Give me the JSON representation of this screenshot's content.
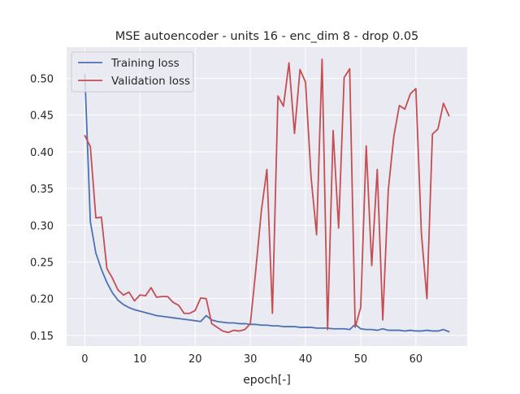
{
  "chart_data": {
    "type": "line",
    "title": "MSE autoencoder - units 16 - enc_dim 8 - drop 0.05",
    "xlabel": "epoch[-]",
    "ylabel": "",
    "xlim": [
      -3.3,
      69.3
    ],
    "ylim": [
      0.1355,
      0.5425
    ],
    "x_ticks": [
      0,
      10,
      20,
      30,
      40,
      50,
      60
    ],
    "x_tick_labels": [
      "0",
      "10",
      "20",
      "30",
      "40",
      "50",
      "60"
    ],
    "y_ticks": [
      0.15,
      0.2,
      0.25,
      0.3,
      0.35,
      0.4,
      0.45,
      0.5
    ],
    "y_tick_labels": [
      "0.15",
      "0.20",
      "0.25",
      "0.30",
      "0.35",
      "0.40",
      "0.45",
      "0.50"
    ],
    "grid": true,
    "legend_position": "upper-left",
    "series": [
      {
        "name": "Training loss",
        "color": "#4c72b0",
        "values": [
          0.506,
          0.305,
          0.262,
          0.24,
          0.222,
          0.208,
          0.198,
          0.192,
          0.188,
          0.185,
          0.183,
          0.181,
          0.179,
          0.177,
          0.176,
          0.175,
          0.174,
          0.173,
          0.172,
          0.171,
          0.17,
          0.169,
          0.177,
          0.171,
          0.169,
          0.168,
          0.167,
          0.167,
          0.166,
          0.166,
          0.165,
          0.165,
          0.164,
          0.164,
          0.163,
          0.163,
          0.162,
          0.162,
          0.162,
          0.161,
          0.161,
          0.161,
          0.16,
          0.16,
          0.16,
          0.159,
          0.159,
          0.159,
          0.158,
          0.165,
          0.159,
          0.158,
          0.158,
          0.157,
          0.159,
          0.157,
          0.157,
          0.157,
          0.156,
          0.157,
          0.156,
          0.156,
          0.157,
          0.156,
          0.156,
          0.158,
          0.155
        ]
      },
      {
        "name": "Validation loss",
        "color": "#c44e52",
        "values": [
          0.422,
          0.407,
          0.31,
          0.311,
          0.241,
          0.228,
          0.212,
          0.205,
          0.209,
          0.197,
          0.205,
          0.204,
          0.215,
          0.202,
          0.203,
          0.203,
          0.195,
          0.191,
          0.18,
          0.18,
          0.184,
          0.201,
          0.2,
          0.166,
          0.161,
          0.156,
          0.154,
          0.157,
          0.156,
          0.158,
          0.166,
          0.24,
          0.32,
          0.376,
          0.18,
          0.476,
          0.462,
          0.521,
          0.425,
          0.512,
          0.495,
          0.366,
          0.287,
          0.526,
          0.158,
          0.429,
          0.296,
          0.501,
          0.513,
          0.161,
          0.188,
          0.408,
          0.245,
          0.376,
          0.171,
          0.348,
          0.421,
          0.463,
          0.458,
          0.479,
          0.486,
          0.289,
          0.2,
          0.424,
          0.431,
          0.466,
          0.449
        ]
      }
    ]
  }
}
